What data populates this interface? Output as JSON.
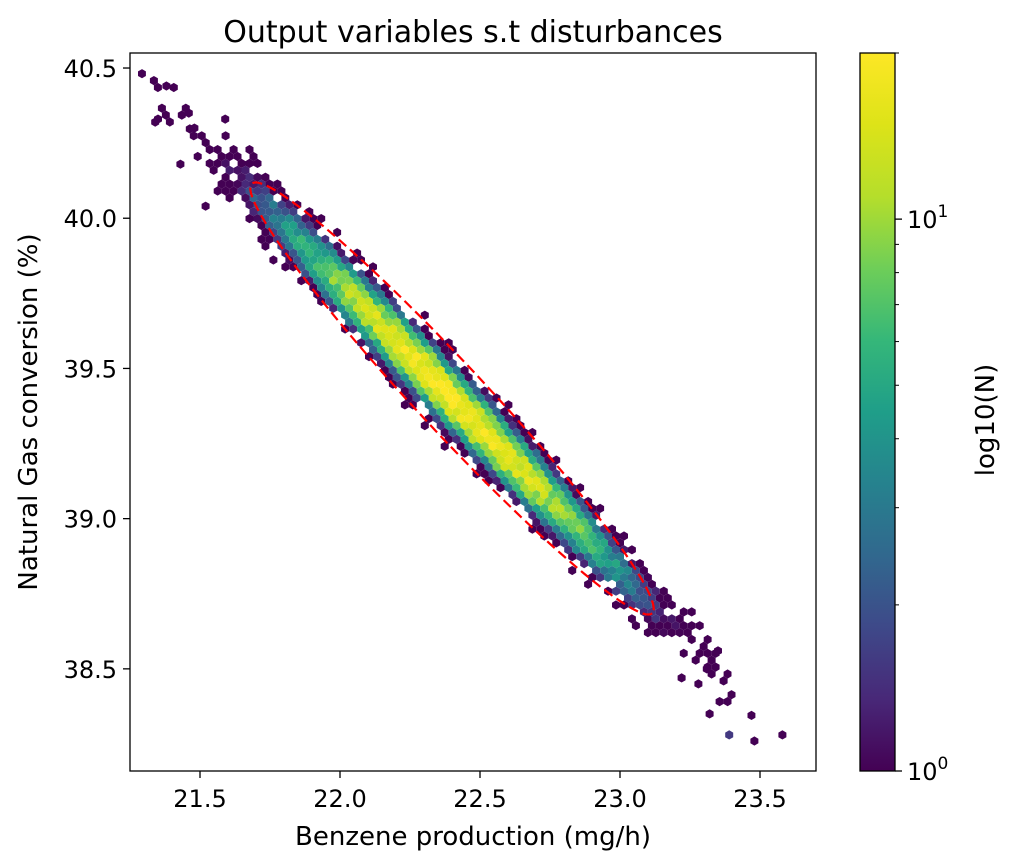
{
  "chart_data": {
    "type": "heatmap",
    "subtype": "hexbin",
    "title": "Output variables s.t disturbances",
    "xlabel": "Benzene production (mg/h)",
    "ylabel": "Natural Gas conversion (%)",
    "xlim": [
      21.25,
      23.7
    ],
    "ylim": [
      38.16,
      40.55
    ],
    "xticks": [
      21.5,
      22.0,
      22.5,
      23.0,
      23.5
    ],
    "xtick_labels": [
      "21.5",
      "22.0",
      "22.5",
      "23.0",
      "23.5"
    ],
    "yticks": [
      38.5,
      39.0,
      39.5,
      40.0,
      40.5
    ],
    "ytick_labels": [
      "38.5",
      "39.0",
      "39.5",
      "40.0",
      "40.5"
    ],
    "colormap": "viridis",
    "colorbar": {
      "label": "log10(N)",
      "scale": "log",
      "range": [
        1,
        20
      ],
      "major_ticks": [
        1,
        10
      ],
      "major_tick_labels": [
        "10",
        "10"
      ],
      "major_tick_exponents": [
        "0",
        "1"
      ],
      "minor_ticks": [
        2,
        3,
        4,
        5,
        6,
        7,
        8,
        9,
        20
      ]
    },
    "distribution": {
      "center": [
        22.4,
        39.4
      ],
      "x_std": 0.33,
      "y_std": 0.32,
      "correlation": -0.985,
      "max_count": 20
    },
    "confidence_ellipse": {
      "color": "#ff0000",
      "style": "dashed",
      "center": [
        22.4,
        39.4
      ],
      "x_extent": [
        21.68,
        23.11
      ],
      "y_extent": [
        38.69,
        40.12
      ]
    },
    "outlier_points": [
      [
        21.38,
        40.44
      ],
      [
        21.34,
        40.32
      ],
      [
        21.35,
        40.33
      ],
      [
        21.46,
        40.35
      ],
      [
        21.52,
        40.04
      ],
      [
        21.43,
        40.18
      ],
      [
        21.59,
        40.33
      ],
      [
        21.48,
        40.3
      ],
      [
        23.48,
        38.26
      ],
      [
        23.58,
        38.28
      ],
      [
        23.39,
        38.28
      ],
      [
        23.32,
        38.35
      ],
      [
        23.35,
        38.56
      ],
      [
        23.28,
        38.45
      ],
      [
        23.31,
        38.5
      ],
      [
        23.22,
        38.47
      ]
    ]
  }
}
